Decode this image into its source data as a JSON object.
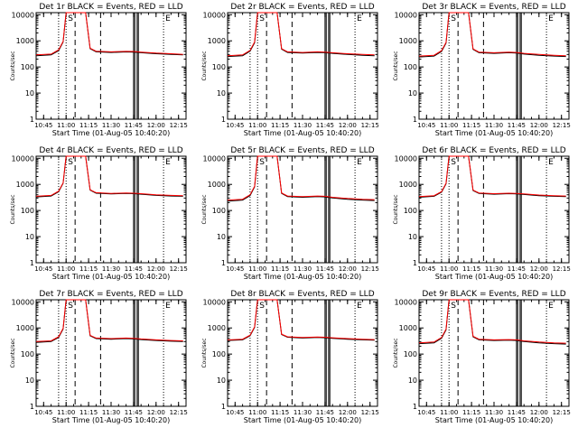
{
  "figure": {
    "background": "#ffffff"
  },
  "chart_data": [
    {
      "type": "line",
      "title": "Det 1r BLACK = Events, RED = LLD",
      "xlabel": "Start Time (01-Aug-05 10:40:20)",
      "ylabel": "Counts/sec",
      "xticks": [
        "10:45",
        "11:00",
        "11:15",
        "11:30",
        "11:45",
        "12:00",
        "12:15"
      ],
      "yticks": [
        "1",
        "10",
        "100",
        "1000",
        "10000"
      ],
      "yscale": "log",
      "xlim": [
        "10:40",
        "12:20"
      ],
      "ylim": [
        1,
        12000
      ],
      "annotations": [
        "S",
        "E"
      ],
      "events_color": "#000000",
      "lld_color": "#ff0000",
      "x": [
        "10:40",
        "10:50",
        "10:55",
        "10:58",
        "11:00",
        "11:13",
        "11:16",
        "11:20",
        "11:30",
        "11:40",
        "11:45",
        "11:50",
        "12:00",
        "12:10",
        "12:18"
      ],
      "series": [
        {
          "name": "Events",
          "values": [
            270,
            290,
            420,
            900,
            12000,
            12000,
            500,
            380,
            360,
            375,
            370,
            350,
            320,
            300,
            290
          ]
        },
        {
          "name": "LLD",
          "values": [
            290,
            310,
            450,
            950,
            12000,
            12000,
            520,
            400,
            380,
            395,
            390,
            370,
            340,
            320,
            300
          ]
        }
      ]
    },
    {
      "type": "line",
      "title": "Det 2r BLACK = Events, RED = LLD",
      "xlabel": "Start Time (01-Aug-05 10:40:20)",
      "ylabel": "Counts/sec",
      "xticks": [
        "10:45",
        "11:00",
        "11:15",
        "11:30",
        "11:45",
        "12:00",
        "12:15"
      ],
      "yticks": [
        "1",
        "10",
        "100",
        "1000",
        "10000"
      ],
      "yscale": "log",
      "xlim": [
        "10:40",
        "12:20"
      ],
      "ylim": [
        1,
        12000
      ],
      "annotations": [
        "S",
        "E"
      ],
      "events_color": "#000000",
      "lld_color": "#ff0000",
      "x": [
        "10:40",
        "10:50",
        "10:55",
        "10:58",
        "11:00",
        "11:13",
        "11:16",
        "11:20",
        "11:30",
        "11:40",
        "11:45",
        "11:50",
        "12:00",
        "12:10",
        "12:18"
      ],
      "series": [
        {
          "name": "Events",
          "values": [
            250,
            270,
            400,
            850,
            12000,
            12000,
            480,
            360,
            340,
            360,
            350,
            330,
            300,
            280,
            270
          ]
        },
        {
          "name": "LLD",
          "values": [
            270,
            290,
            430,
            900,
            12000,
            12000,
            500,
            380,
            360,
            380,
            370,
            350,
            320,
            300,
            290
          ]
        }
      ]
    },
    {
      "type": "line",
      "title": "Det 3r BLACK = Events, RED = LLD",
      "xlabel": "Start Time (01-Aug-05 10:40:20)",
      "ylabel": "Counts/sec",
      "xticks": [
        "10:45",
        "11:00",
        "11:15",
        "11:30",
        "11:45",
        "12:00",
        "12:15"
      ],
      "yticks": [
        "1",
        "10",
        "100",
        "1000",
        "10000"
      ],
      "yscale": "log",
      "xlim": [
        "10:40",
        "12:20"
      ],
      "ylim": [
        1,
        12000
      ],
      "annotations": [
        "S",
        "E"
      ],
      "events_color": "#000000",
      "lld_color": "#ff0000",
      "x": [
        "10:40",
        "10:50",
        "10:55",
        "10:58",
        "11:00",
        "11:13",
        "11:16",
        "11:20",
        "11:30",
        "11:40",
        "11:45",
        "11:50",
        "12:00",
        "12:10",
        "12:18"
      ],
      "series": [
        {
          "name": "Events",
          "values": [
            240,
            260,
            390,
            820,
            12000,
            12000,
            470,
            350,
            330,
            350,
            340,
            310,
            280,
            260,
            250
          ]
        },
        {
          "name": "LLD",
          "values": [
            260,
            280,
            420,
            870,
            12000,
            12000,
            490,
            370,
            350,
            370,
            360,
            330,
            300,
            280,
            270
          ]
        }
      ]
    },
    {
      "type": "line",
      "title": "Det 4r BLACK = Events, RED = LLD",
      "xlabel": "Start Time (01-Aug-05 10:40:20)",
      "ylabel": "Counts/sec",
      "xticks": [
        "10:45",
        "11:00",
        "11:15",
        "11:30",
        "11:45",
        "12:00",
        "12:15"
      ],
      "yticks": [
        "1",
        "10",
        "100",
        "1000",
        "10000"
      ],
      "yscale": "log",
      "xlim": [
        "10:40",
        "12:20"
      ],
      "ylim": [
        1,
        12000
      ],
      "annotations": [
        "S",
        "E"
      ],
      "events_color": "#000000",
      "lld_color": "#ff0000",
      "x": [
        "10:40",
        "10:50",
        "10:55",
        "10:58",
        "11:00",
        "11:13",
        "11:16",
        "11:20",
        "11:30",
        "11:40",
        "11:45",
        "11:50",
        "12:00",
        "12:10",
        "12:18"
      ],
      "series": [
        {
          "name": "Events",
          "values": [
            330,
            360,
            520,
            1100,
            12000,
            12000,
            600,
            460,
            430,
            450,
            440,
            420,
            380,
            360,
            350
          ]
        },
        {
          "name": "LLD",
          "values": [
            350,
            380,
            550,
            1150,
            12000,
            12000,
            620,
            480,
            450,
            470,
            460,
            440,
            400,
            380,
            370
          ]
        }
      ]
    },
    {
      "type": "line",
      "title": "Det 5r BLACK = Events, RED = LLD",
      "xlabel": "Start Time (01-Aug-05 10:40:20)",
      "ylabel": "Counts/sec",
      "xticks": [
        "10:45",
        "11:00",
        "11:15",
        "11:30",
        "11:45",
        "12:00",
        "12:15"
      ],
      "yticks": [
        "1",
        "10",
        "100",
        "1000",
        "10000"
      ],
      "yscale": "log",
      "xlim": [
        "10:40",
        "12:20"
      ],
      "ylim": [
        1,
        12000
      ],
      "annotations": [
        "S",
        "E"
      ],
      "events_color": "#000000",
      "lld_color": "#ff0000",
      "x": [
        "10:40",
        "10:50",
        "10:55",
        "10:58",
        "11:00",
        "11:13",
        "11:16",
        "11:20",
        "11:30",
        "11:40",
        "11:45",
        "11:50",
        "12:00",
        "12:10",
        "12:18"
      ],
      "series": [
        {
          "name": "Events",
          "values": [
            230,
            250,
            370,
            800,
            12000,
            12000,
            450,
            340,
            320,
            340,
            330,
            300,
            270,
            250,
            240
          ]
        },
        {
          "name": "LLD",
          "values": [
            250,
            270,
            400,
            850,
            12000,
            12000,
            470,
            360,
            340,
            360,
            350,
            320,
            290,
            270,
            260
          ]
        }
      ]
    },
    {
      "type": "line",
      "title": "Det 6r BLACK = Events, RED = LLD",
      "xlabel": "Start Time (01-Aug-05 10:40:20)",
      "ylabel": "Counts/sec",
      "xticks": [
        "10:45",
        "11:00",
        "11:15",
        "11:30",
        "11:45",
        "12:00",
        "12:15"
      ],
      "yticks": [
        "1",
        "10",
        "100",
        "1000",
        "10000"
      ],
      "yscale": "log",
      "xlim": [
        "10:40",
        "12:20"
      ],
      "ylim": [
        1,
        12000
      ],
      "annotations": [
        "S",
        "E"
      ],
      "events_color": "#000000",
      "lld_color": "#ff0000",
      "x": [
        "10:40",
        "10:50",
        "10:55",
        "10:58",
        "11:00",
        "11:13",
        "11:16",
        "11:20",
        "11:30",
        "11:40",
        "11:45",
        "11:50",
        "12:00",
        "12:10",
        "12:18"
      ],
      "series": [
        {
          "name": "Events",
          "values": [
            320,
            350,
            500,
            1050,
            12000,
            12000,
            580,
            450,
            420,
            440,
            430,
            410,
            370,
            350,
            340
          ]
        },
        {
          "name": "LLD",
          "values": [
            340,
            370,
            530,
            1100,
            12000,
            12000,
            600,
            470,
            440,
            460,
            450,
            430,
            390,
            370,
            360
          ]
        }
      ]
    },
    {
      "type": "line",
      "title": "Det 7r BLACK = Events, RED = LLD",
      "xlabel": "Start Time (01-Aug-05 10:40:20)",
      "ylabel": "Counts/sec",
      "xticks": [
        "10:45",
        "11:00",
        "11:15",
        "11:30",
        "11:45",
        "12:00",
        "12:15"
      ],
      "yticks": [
        "1",
        "10",
        "100",
        "1000",
        "10000"
      ],
      "yscale": "log",
      "xlim": [
        "10:40",
        "12:20"
      ],
      "ylim": [
        1,
        12000
      ],
      "annotations": [
        "S",
        "E"
      ],
      "events_color": "#000000",
      "lld_color": "#ff0000",
      "x": [
        "10:40",
        "10:50",
        "10:55",
        "10:58",
        "11:00",
        "11:13",
        "11:16",
        "11:20",
        "11:30",
        "11:40",
        "11:45",
        "11:50",
        "12:00",
        "12:10",
        "12:18"
      ],
      "series": [
        {
          "name": "Events",
          "values": [
            280,
            300,
            430,
            920,
            12000,
            12000,
            500,
            390,
            370,
            390,
            380,
            360,
            330,
            310,
            300
          ]
        },
        {
          "name": "LLD",
          "values": [
            300,
            320,
            460,
            970,
            12000,
            12000,
            520,
            410,
            390,
            410,
            400,
            380,
            350,
            330,
            320
          ]
        }
      ]
    },
    {
      "type": "line",
      "title": "Det 8r BLACK = Events, RED = LLD",
      "xlabel": "Start Time (01-Aug-05 10:40:20)",
      "ylabel": "Counts/sec",
      "xticks": [
        "10:45",
        "11:00",
        "11:15",
        "11:30",
        "11:45",
        "12:00",
        "12:15"
      ],
      "yticks": [
        "1",
        "10",
        "100",
        "1000",
        "10000"
      ],
      "yscale": "log",
      "xlim": [
        "10:40",
        "12:20"
      ],
      "ylim": [
        1,
        12000
      ],
      "annotations": [
        "S",
        "E"
      ],
      "events_color": "#000000",
      "lld_color": "#ff0000",
      "x": [
        "10:40",
        "10:50",
        "10:55",
        "10:58",
        "11:00",
        "11:13",
        "11:16",
        "11:20",
        "11:30",
        "11:40",
        "11:45",
        "11:50",
        "12:00",
        "12:10",
        "12:18"
      ],
      "series": [
        {
          "name": "Events",
          "values": [
            330,
            350,
            500,
            1050,
            12000,
            12000,
            560,
            440,
            410,
            430,
            420,
            400,
            370,
            350,
            340
          ]
        },
        {
          "name": "LLD",
          "values": [
            350,
            370,
            530,
            1100,
            12000,
            12000,
            580,
            460,
            430,
            450,
            440,
            420,
            390,
            370,
            360
          ]
        }
      ]
    },
    {
      "type": "line",
      "title": "Det 9r BLACK = Events, RED = LLD",
      "xlabel": "Start Time (01-Aug-05 10:40:20)",
      "ylabel": "Counts/sec",
      "xticks": [
        "10:45",
        "11:00",
        "11:15",
        "11:30",
        "11:45",
        "12:00",
        "12:15"
      ],
      "yticks": [
        "1",
        "10",
        "100",
        "1000",
        "10000"
      ],
      "yscale": "log",
      "xlim": [
        "10:40",
        "12:20"
      ],
      "ylim": [
        1,
        12000
      ],
      "annotations": [
        "S",
        "E"
      ],
      "events_color": "#000000",
      "lld_color": "#ff0000",
      "x": [
        "10:40",
        "10:50",
        "10:55",
        "10:58",
        "11:00",
        "11:13",
        "11:16",
        "11:20",
        "11:30",
        "11:40",
        "11:45",
        "11:50",
        "12:00",
        "12:10",
        "12:18"
      ],
      "series": [
        {
          "name": "Events",
          "values": [
            250,
            270,
            400,
            850,
            12000,
            12000,
            460,
            350,
            330,
            340,
            330,
            300,
            270,
            250,
            240
          ]
        },
        {
          "name": "LLD",
          "values": [
            270,
            290,
            430,
            900,
            12000,
            12000,
            480,
            370,
            350,
            360,
            350,
            320,
            290,
            270,
            260
          ]
        }
      ]
    }
  ]
}
